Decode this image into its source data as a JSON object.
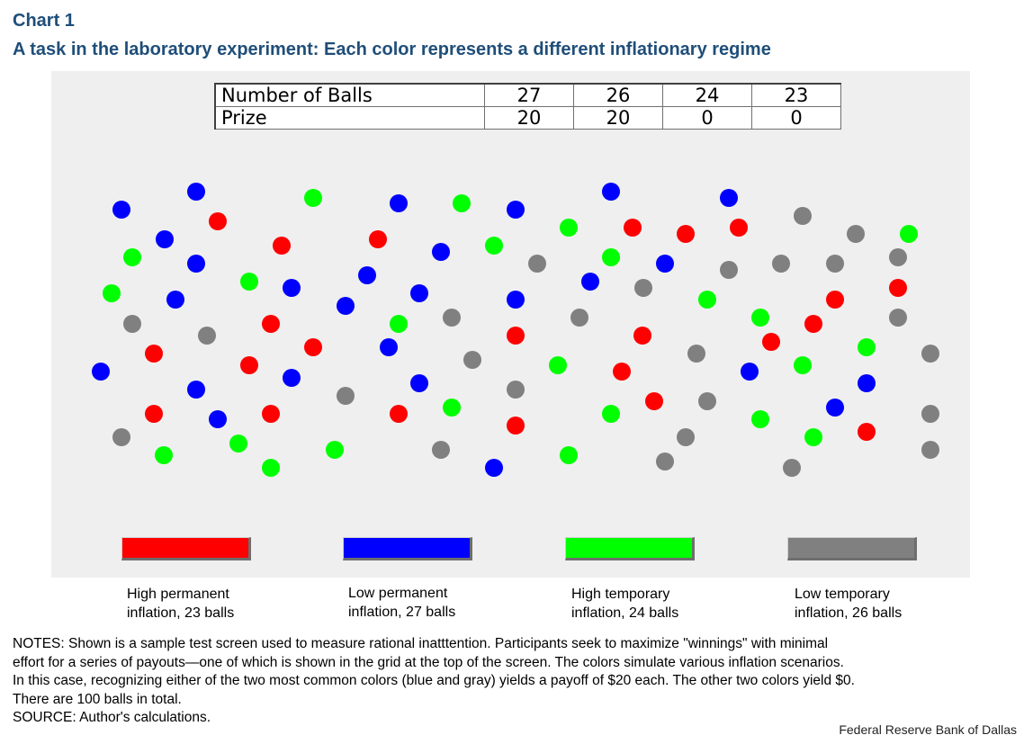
{
  "header": {
    "chart_label": "Chart 1",
    "title": "A task in the laboratory experiment: Each color represents a different inflationary regime"
  },
  "payout_grid": {
    "rows": [
      {
        "label": "Number of Balls",
        "values": [
          "27",
          "26",
          "24",
          "23"
        ]
      },
      {
        "label": "Prize",
        "values": [
          "20",
          "20",
          "0",
          "0"
        ]
      }
    ]
  },
  "colors": {
    "red": "#ff0000",
    "blue": "#0000ff",
    "green": "#00ff00",
    "gray": "#808080"
  },
  "legend": [
    {
      "color": "#ff0000",
      "line1": "High permanent",
      "line2": "inflation, 23 balls"
    },
    {
      "color": "#0000ff",
      "line1": "Low permanent",
      "line2": "inflation, 27 balls"
    },
    {
      "color": "#00ff00",
      "line1": "High temporary",
      "line2": "inflation, 24 balls"
    },
    {
      "color": "#808080",
      "line1": "Low temporary",
      "line2": "inflation, 26 balls"
    }
  ],
  "notes": [
    "NOTES: Shown is a sample test screen used to measure rational inatttention. Participants seek to maximize  \"winnings\" with minimal",
    "effort for a series of payouts—one of which is shown in the grid at the top of the screen. The colors simulate various inflation scenarios.",
    "In this case, recognizing either of the two most common colors (blue and gray) yields a payoff of $20 each. The other two colors yield $0.",
    "There are 100 balls in total.",
    "SOURCE: Author's calculations."
  ],
  "credit": "Federal Reserve  Bank of Dallas"
}
